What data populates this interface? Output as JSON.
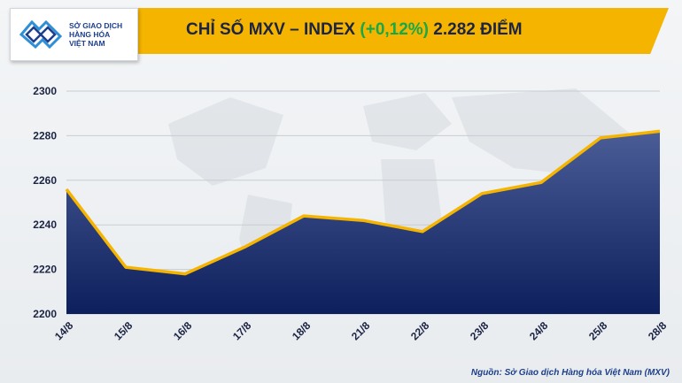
{
  "logo": {
    "line1": "SỞ GIAO DỊCH",
    "line2": "HÀNG HÓA",
    "line3": "VIỆT NAM"
  },
  "header": {
    "title_prefix": "CHỈ SỐ MXV – INDEX",
    "change": "(+0,12%)",
    "value_text": "2.282 ĐIỂM"
  },
  "source": "Nguồn: Sở Giao dịch Hàng hóa Việt Nam (MXV)",
  "colors": {
    "title_bar": "#f5b400",
    "line": "#f5b400",
    "area_top": "#4a5d97",
    "area_bottom": "#0d1f5c",
    "axis_text": "#1c2444",
    "positive": "#17a84a"
  },
  "chart_data": {
    "type": "area",
    "title": "CHỈ SỐ MXV – INDEX (+0,12%) 2.282 ĐIỂM",
    "categories": [
      "14/8",
      "15/8",
      "16/8",
      "17/8",
      "18/8",
      "21/8",
      "22/8",
      "23/8",
      "24/8",
      "25/8",
      "28/8"
    ],
    "series": [
      {
        "name": "MXV-Index",
        "values": [
          2256,
          2221,
          2218,
          2230,
          2244,
          2242,
          2237,
          2254,
          2259,
          2279,
          2282
        ]
      }
    ],
    "y_ticks": [
      2200,
      2220,
      2240,
      2260,
      2280,
      2300
    ],
    "ylim": [
      2200,
      2300
    ],
    "grid": true,
    "xlabel": "",
    "ylabel": ""
  }
}
